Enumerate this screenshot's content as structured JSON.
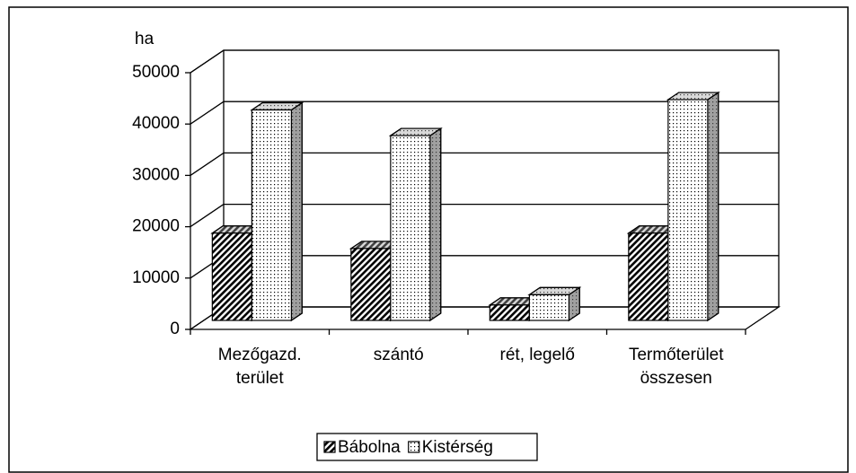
{
  "chart_data": {
    "type": "bar3d",
    "y_axis_label": "ha",
    "categories": [
      [
        "Mezőgazd.",
        "terület"
      ],
      [
        "szántó"
      ],
      [
        "rét, legelő"
      ],
      [
        "Termőterület",
        "összesen"
      ]
    ],
    "series": [
      {
        "name": "Bábolna",
        "color": "#000000",
        "pattern": "hatch",
        "values": [
          17000,
          14000,
          3000,
          17000
        ]
      },
      {
        "name": "Kistérség",
        "color": "#000000",
        "pattern": "dots",
        "values": [
          41000,
          36000,
          5000,
          43000
        ]
      }
    ],
    "ylim": [
      0,
      50000
    ],
    "yticks": [
      0,
      10000,
      20000,
      30000,
      40000,
      50000
    ],
    "grid": true,
    "legend": "bottom"
  }
}
